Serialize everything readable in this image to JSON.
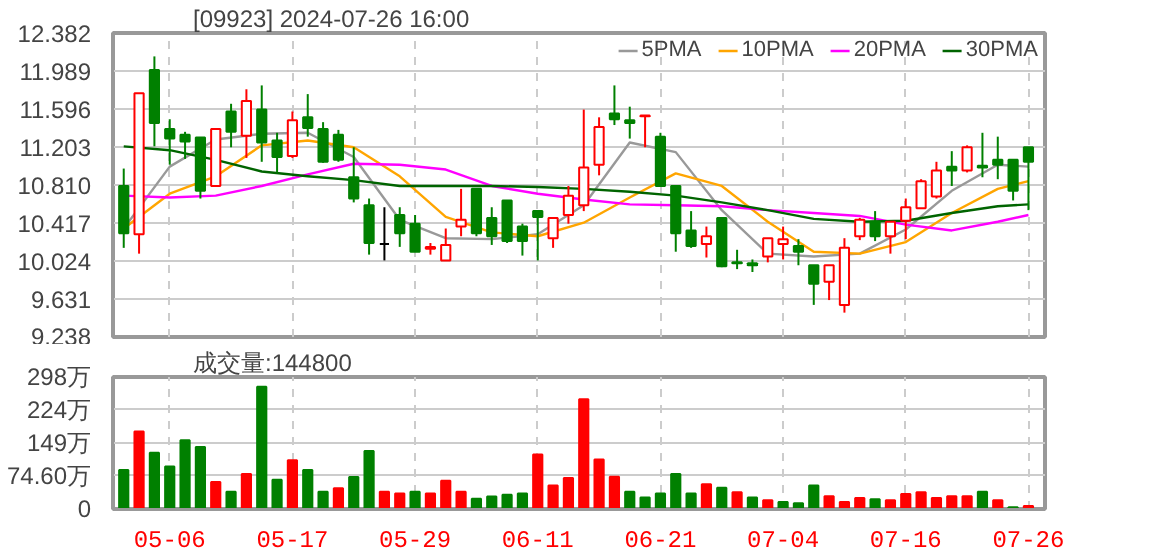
{
  "chart_data": [
    {
      "type": "candlestick",
      "title": "[09923] 2024-07-26 16:00",
      "legend": "top right",
      "grid": true,
      "tick_labels": "y",
      "categories": [
        null,
        null,
        null,
        null,
        null,
        null,
        null,
        null,
        null,
        null,
        null,
        null,
        null,
        null,
        null,
        null,
        null,
        null,
        null,
        null,
        null,
        null,
        null,
        null,
        null,
        null,
        null,
        null,
        null,
        null,
        null,
        null,
        null,
        null,
        null,
        null,
        null,
        null,
        null,
        null,
        null,
        null,
        null,
        null,
        null,
        null,
        null,
        null,
        null,
        null,
        null,
        null,
        null,
        null,
        null,
        null,
        null,
        null,
        null,
        null
      ],
      "ylim": [
        9.238,
        12.382
      ],
      "yticks": [
        9.238,
        9.631,
        10.024,
        10.417,
        {
          "value": 10.81,
          "label": "10.810"
        },
        11.203,
        11.596,
        11.989,
        12.382
      ],
      "ohlc": [
        [
          10.8,
          10.98,
          10.16,
          10.31
        ],
        [
          10.3,
          11.76,
          10.1,
          11.76
        ],
        [
          12.0,
          12.14,
          11.21,
          11.45
        ],
        [
          11.39,
          11.49,
          11.02,
          11.29
        ],
        [
          11.33,
          11.36,
          11.08,
          11.26
        ],
        [
          11.3,
          11.3,
          10.67,
          10.75
        ],
        [
          10.8,
          11.39,
          10.8,
          11.39
        ],
        [
          11.57,
          11.65,
          11.2,
          11.36
        ],
        [
          11.32,
          11.8,
          11.09,
          11.68
        ],
        [
          11.59,
          11.84,
          11.05,
          11.25
        ],
        [
          11.27,
          11.35,
          10.94,
          11.1
        ],
        [
          11.11,
          11.57,
          11.09,
          11.48
        ],
        [
          11.51,
          11.75,
          11.31,
          11.4
        ],
        [
          11.39,
          11.46,
          11.04,
          11.05
        ],
        [
          11.33,
          11.38,
          11.05,
          11.07
        ],
        [
          10.89,
          11.2,
          10.63,
          10.67
        ],
        [
          10.6,
          10.67,
          10.09,
          10.21
        ],
        [
          10.2,
          10.58,
          10.03,
          10.2
        ],
        [
          10.5,
          10.58,
          10.17,
          10.31
        ],
        [
          10.41,
          10.5,
          10.12,
          10.12
        ],
        [
          10.15,
          10.21,
          10.09,
          10.17
        ],
        [
          10.03,
          10.36,
          10.03,
          10.19
        ],
        [
          10.38,
          10.77,
          10.28,
          10.45
        ],
        [
          10.77,
          10.77,
          10.28,
          10.31
        ],
        [
          10.47,
          10.58,
          10.19,
          10.28
        ],
        [
          10.65,
          10.65,
          10.21,
          10.23
        ],
        [
          10.38,
          10.41,
          10.08,
          10.23
        ],
        [
          10.54,
          10.54,
          10.03,
          10.48
        ],
        [
          10.26,
          10.47,
          10.16,
          10.47
        ],
        [
          10.5,
          10.8,
          10.41,
          10.7
        ],
        [
          10.6,
          11.59,
          10.54,
          10.99
        ],
        [
          11.02,
          11.51,
          10.91,
          11.41
        ],
        [
          11.55,
          11.84,
          11.43,
          11.49
        ],
        [
          11.48,
          11.62,
          11.29,
          11.45
        ],
        [
          11.52,
          11.53,
          11.2,
          11.53
        ],
        [
          11.31,
          11.35,
          10.8,
          10.8
        ],
        [
          10.8,
          10.8,
          10.12,
          10.31
        ],
        [
          10.34,
          10.54,
          10.16,
          10.18
        ],
        [
          10.2,
          10.38,
          10.06,
          10.28
        ],
        [
          10.47,
          10.47,
          9.96,
          9.97
        ],
        [
          10.01,
          10.14,
          9.94,
          10.0
        ],
        [
          10.0,
          10.04,
          9.91,
          9.98
        ],
        [
          10.07,
          10.26,
          10.01,
          10.26
        ],
        [
          10.2,
          10.38,
          10.04,
          10.25
        ],
        [
          10.18,
          10.25,
          9.98,
          10.12
        ],
        [
          9.98,
          9.98,
          9.57,
          9.79
        ],
        [
          9.81,
          9.98,
          9.62,
          9.98
        ],
        [
          9.57,
          10.26,
          9.49,
          10.16
        ],
        [
          10.28,
          10.47,
          10.24,
          10.45
        ],
        [
          10.43,
          10.54,
          10.23,
          10.28
        ],
        [
          10.28,
          10.43,
          10.1,
          10.43
        ],
        [
          10.44,
          10.67,
          10.25,
          10.58
        ],
        [
          10.57,
          10.87,
          10.57,
          10.85
        ],
        [
          10.69,
          11.05,
          10.67,
          10.96
        ],
        [
          11.0,
          11.16,
          10.8,
          10.96
        ],
        [
          10.96,
          11.22,
          10.94,
          11.2
        ],
        [
          11.01,
          11.35,
          10.89,
          10.99
        ],
        [
          11.07,
          11.31,
          10.87,
          11.02
        ],
        [
          11.07,
          11.07,
          10.65,
          10.75
        ],
        [
          11.2,
          11.2,
          10.55,
          11.05
        ]
      ],
      "series": [
        {
          "name": "5PMA",
          "type": "line",
          "color": "#999999",
          "values": [
            10.36,
            null,
            null,
            11.0,
            null,
            null,
            11.28,
            null,
            null,
            11.34,
            null,
            null,
            11.35,
            null,
            null,
            11.1,
            null,
            null,
            10.45,
            null,
            null,
            10.26,
            null,
            null,
            10.25,
            null,
            null,
            10.3,
            null,
            null,
            10.6,
            null,
            null,
            11.25,
            null,
            null,
            11.15,
            null,
            null,
            10.55,
            null,
            null,
            10.1,
            null,
            null,
            10.07,
            null,
            null,
            10.1,
            null,
            null,
            10.35,
            null,
            null,
            10.75,
            null,
            null,
            11.02,
            null,
            11.0
          ]
        },
        {
          "name": "10PMA",
          "type": "line",
          "color": "#ffa500",
          "values": [
            10.36,
            null,
            null,
            10.72,
            null,
            null,
            10.9,
            null,
            null,
            11.22,
            null,
            null,
            11.27,
            null,
            null,
            11.2,
            null,
            null,
            10.9,
            null,
            null,
            10.48,
            null,
            null,
            10.32,
            null,
            null,
            10.28,
            null,
            null,
            10.42,
            null,
            null,
            10.68,
            null,
            null,
            10.93,
            null,
            null,
            10.8,
            null,
            null,
            10.43,
            null,
            null,
            10.12,
            null,
            null,
            10.1,
            null,
            null,
            10.22,
            null,
            null,
            10.52,
            null,
            null,
            10.77,
            null,
            10.85
          ]
        },
        {
          "name": "20PMA",
          "type": "line",
          "color": "#ff00ff",
          "values": [
            10.7,
            null,
            null,
            10.68,
            null,
            null,
            10.7,
            null,
            null,
            10.8,
            null,
            null,
            10.92,
            null,
            null,
            11.03,
            null,
            null,
            11.02,
            null,
            null,
            10.97,
            null,
            null,
            10.8,
            null,
            null,
            10.72,
            null,
            null,
            10.66,
            null,
            null,
            10.61,
            null,
            null,
            10.6,
            null,
            null,
            10.59,
            null,
            null,
            10.55,
            null,
            null,
            10.52,
            null,
            null,
            10.49,
            null,
            null,
            10.4,
            null,
            null,
            10.34,
            null,
            null,
            10.43,
            null,
            10.5
          ]
        },
        {
          "name": "30PMA",
          "type": "line",
          "color": "#006400",
          "values": [
            11.21,
            null,
            null,
            11.17,
            null,
            null,
            11.07,
            null,
            null,
            10.95,
            null,
            null,
            10.9,
            null,
            null,
            10.86,
            null,
            null,
            10.8,
            null,
            null,
            10.8,
            null,
            null,
            10.8,
            null,
            null,
            10.79,
            null,
            null,
            10.77,
            null,
            null,
            10.74,
            null,
            null,
            10.7,
            null,
            null,
            10.63,
            null,
            null,
            10.55,
            null,
            null,
            10.46,
            null,
            null,
            10.43,
            null,
            null,
            10.44,
            null,
            null,
            10.52,
            null,
            null,
            10.59,
            null,
            10.61
          ]
        }
      ]
    },
    {
      "type": "bar",
      "title": "成交量:144800",
      "grid": true,
      "categories": [
        null,
        null,
        null,
        "05-06",
        null,
        null,
        null,
        null,
        null,
        null,
        null,
        "05-17",
        null,
        null,
        null,
        null,
        null,
        null,
        null,
        "05-29",
        null,
        null,
        null,
        null,
        null,
        null,
        null,
        "06-11",
        null,
        null,
        null,
        null,
        null,
        null,
        null,
        "06-21",
        null,
        null,
        null,
        null,
        null,
        null,
        null,
        "07-04",
        null,
        null,
        null,
        null,
        null,
        null,
        null,
        "07-16",
        null,
        null,
        null,
        null,
        null,
        null,
        null,
        "07-26"
      ],
      "ylim": [
        0,
        298
      ],
      "yticks": [
        0,
        {
          "value": 74.6,
          "label": "74.60万"
        },
        {
          "value": 149,
          "label": "149万"
        },
        {
          "value": 224,
          "label": "224万"
        },
        {
          "value": 298,
          "label": "298万"
        }
      ],
      "values": [
        88,
        175,
        127,
        96,
        155,
        140,
        61,
        39,
        79,
        276,
        66,
        110,
        88,
        39,
        47,
        72,
        131,
        39,
        35,
        39,
        35,
        64,
        39,
        23,
        28,
        32,
        35,
        123,
        53,
        70,
        248,
        112,
        73,
        39,
        26,
        35,
        79,
        35,
        56,
        48,
        38,
        26,
        20,
        16,
        13,
        53,
        29,
        16,
        25,
        22,
        20,
        34,
        38,
        25,
        29,
        29,
        39,
        20,
        4,
        7
      ],
      "colors": [
        "#008000",
        "#ff0000",
        "#008000",
        "#008000",
        "#008000",
        "#008000",
        "#ff0000",
        "#008000",
        "#ff0000",
        "#008000",
        "#008000",
        "#ff0000",
        "#008000",
        "#008000",
        "#ff0000",
        "#008000",
        "#008000",
        "#ff0000",
        "#ff0000",
        "#008000",
        "#ff0000",
        "#ff0000",
        "#ff0000",
        "#008000",
        "#008000",
        "#008000",
        "#008000",
        "#ff0000",
        "#ff0000",
        "#ff0000",
        "#ff0000",
        "#ff0000",
        "#ff0000",
        "#008000",
        "#008000",
        "#008000",
        "#008000",
        "#008000",
        "#ff0000",
        "#008000",
        "#ff0000",
        "#008000",
        "#ff0000",
        "#008000",
        "#008000",
        "#008000",
        "#ff0000",
        "#ff0000",
        "#ff0000",
        "#008000",
        "#ff0000",
        "#ff0000",
        "#ff0000",
        "#ff0000",
        "#ff0000",
        "#ff0000",
        "#008000",
        "#ff0000",
        "#008000",
        "#ff0000"
      ]
    }
  ]
}
